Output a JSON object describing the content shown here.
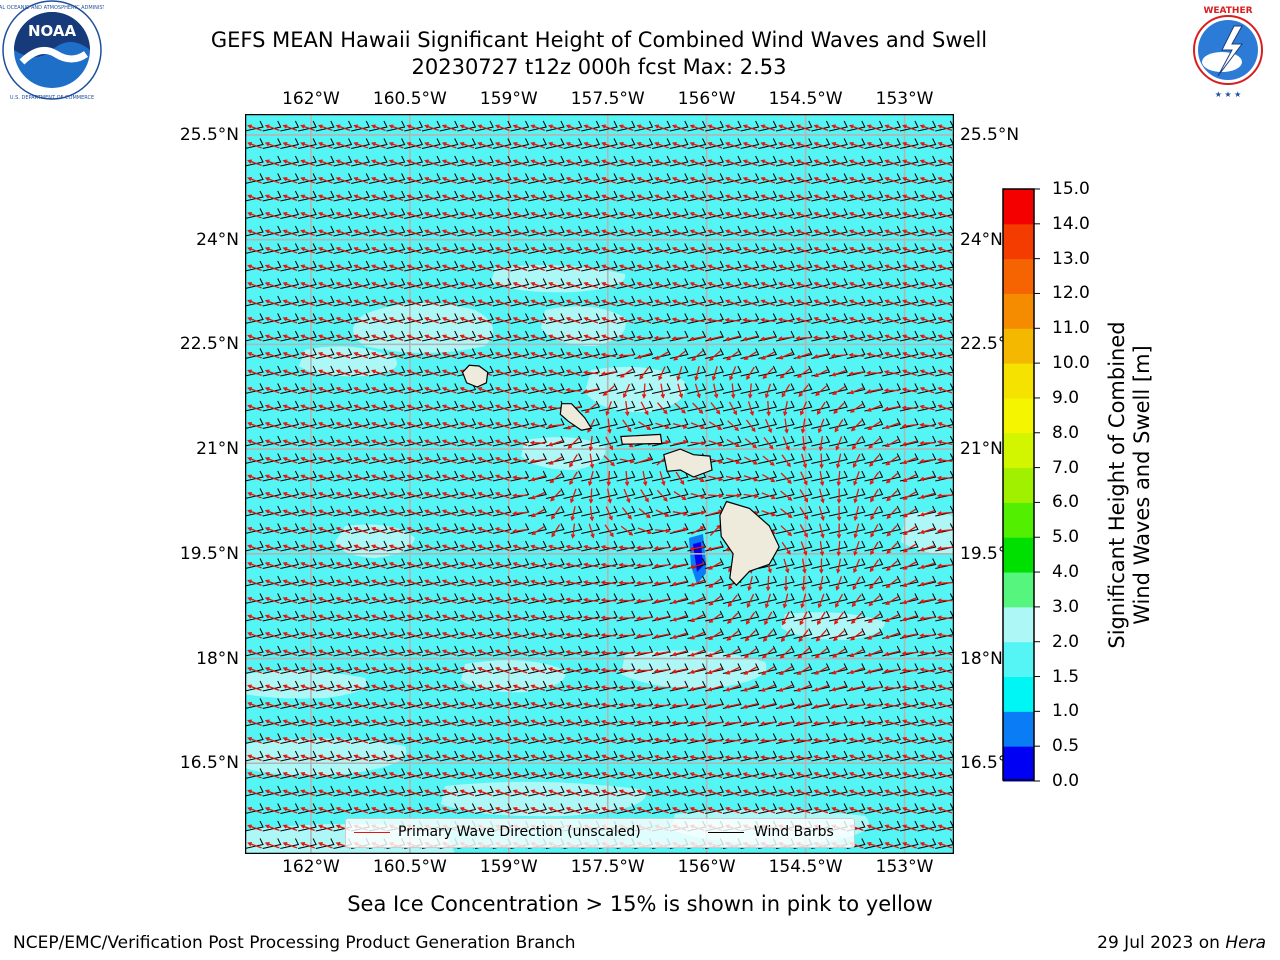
{
  "title": {
    "line1": "GEFS MEAN Hawaii Significant Height of Combined Wind Waves and Swell",
    "line2": "20230727 t12z 000h fcst   Max: 2.53"
  },
  "logos": {
    "left": {
      "icon": "noaa-logo",
      "text": "NOAA",
      "ring_text": "NATIONAL OCEANIC AND ATMOSPHERIC ADMINISTRATION · U.S. DEPARTMENT OF COMMERCE"
    },
    "right": {
      "icon": "nws-logo",
      "ring_text": "NATIONAL WEATHER SERVICE"
    }
  },
  "map": {
    "lon_ticks": [
      "162°W",
      "160.5°W",
      "159°W",
      "157.5°W",
      "156°W",
      "154.5°W",
      "153°W"
    ],
    "lat_ticks": [
      "25.5°N",
      "24°N",
      "22.5°N",
      "21°N",
      "19.5°N",
      "18°N",
      "16.5°N"
    ],
    "lon_range": [
      -163.0,
      -152.25
    ],
    "lat_range": [
      15.2,
      25.8
    ],
    "ocean_color": "#55f5f5",
    "calm_color": "#aef7f7",
    "land_color": "#efebdc",
    "wave_arrow_color": "#e8150e",
    "barb_color": "#000000",
    "islands": [
      {
        "name": "Kauai",
        "lon": -159.5,
        "lat": 22.05
      },
      {
        "name": "Oahu",
        "lon": -158.0,
        "lat": 21.45
      },
      {
        "name": "Molokai",
        "lon": -157.0,
        "lat": 21.13
      },
      {
        "name": "Maui",
        "lon": -156.3,
        "lat": 20.8
      },
      {
        "name": "Hawaii",
        "lon": -155.5,
        "lat": 19.6
      }
    ]
  },
  "legend": {
    "wave": "Primary Wave Direction (unscaled)",
    "barbs": "Wind Barbs"
  },
  "colorbar": {
    "label_line1": "Significant Height of Combined",
    "label_line2": "Wind Waves and Swell [m]",
    "ticks": [
      "0.0",
      "0.5",
      "1.0",
      "1.5",
      "2.0",
      "3.0",
      "4.0",
      "5.0",
      "6.0",
      "7.0",
      "8.0",
      "9.0",
      "10.0",
      "11.0",
      "12.0",
      "13.0",
      "14.0",
      "15.0"
    ],
    "colors": [
      "#0000f5",
      "#0a7cf5",
      "#00f5f5",
      "#55f5f5",
      "#aef7f7",
      "#55f57e",
      "#00e000",
      "#52f000",
      "#a0f000",
      "#d2f500",
      "#f5f500",
      "#f5e200",
      "#f5b800",
      "#f58c00",
      "#f56400",
      "#f53c00",
      "#f50000"
    ]
  },
  "footer": {
    "note": "Sea Ice Concentration > 15% is shown in pink to yellow",
    "left": "NCEP/EMC/Verification Post Processing Product Generation Branch",
    "date": "29 Jul 2023 on ",
    "host": "Hera"
  }
}
